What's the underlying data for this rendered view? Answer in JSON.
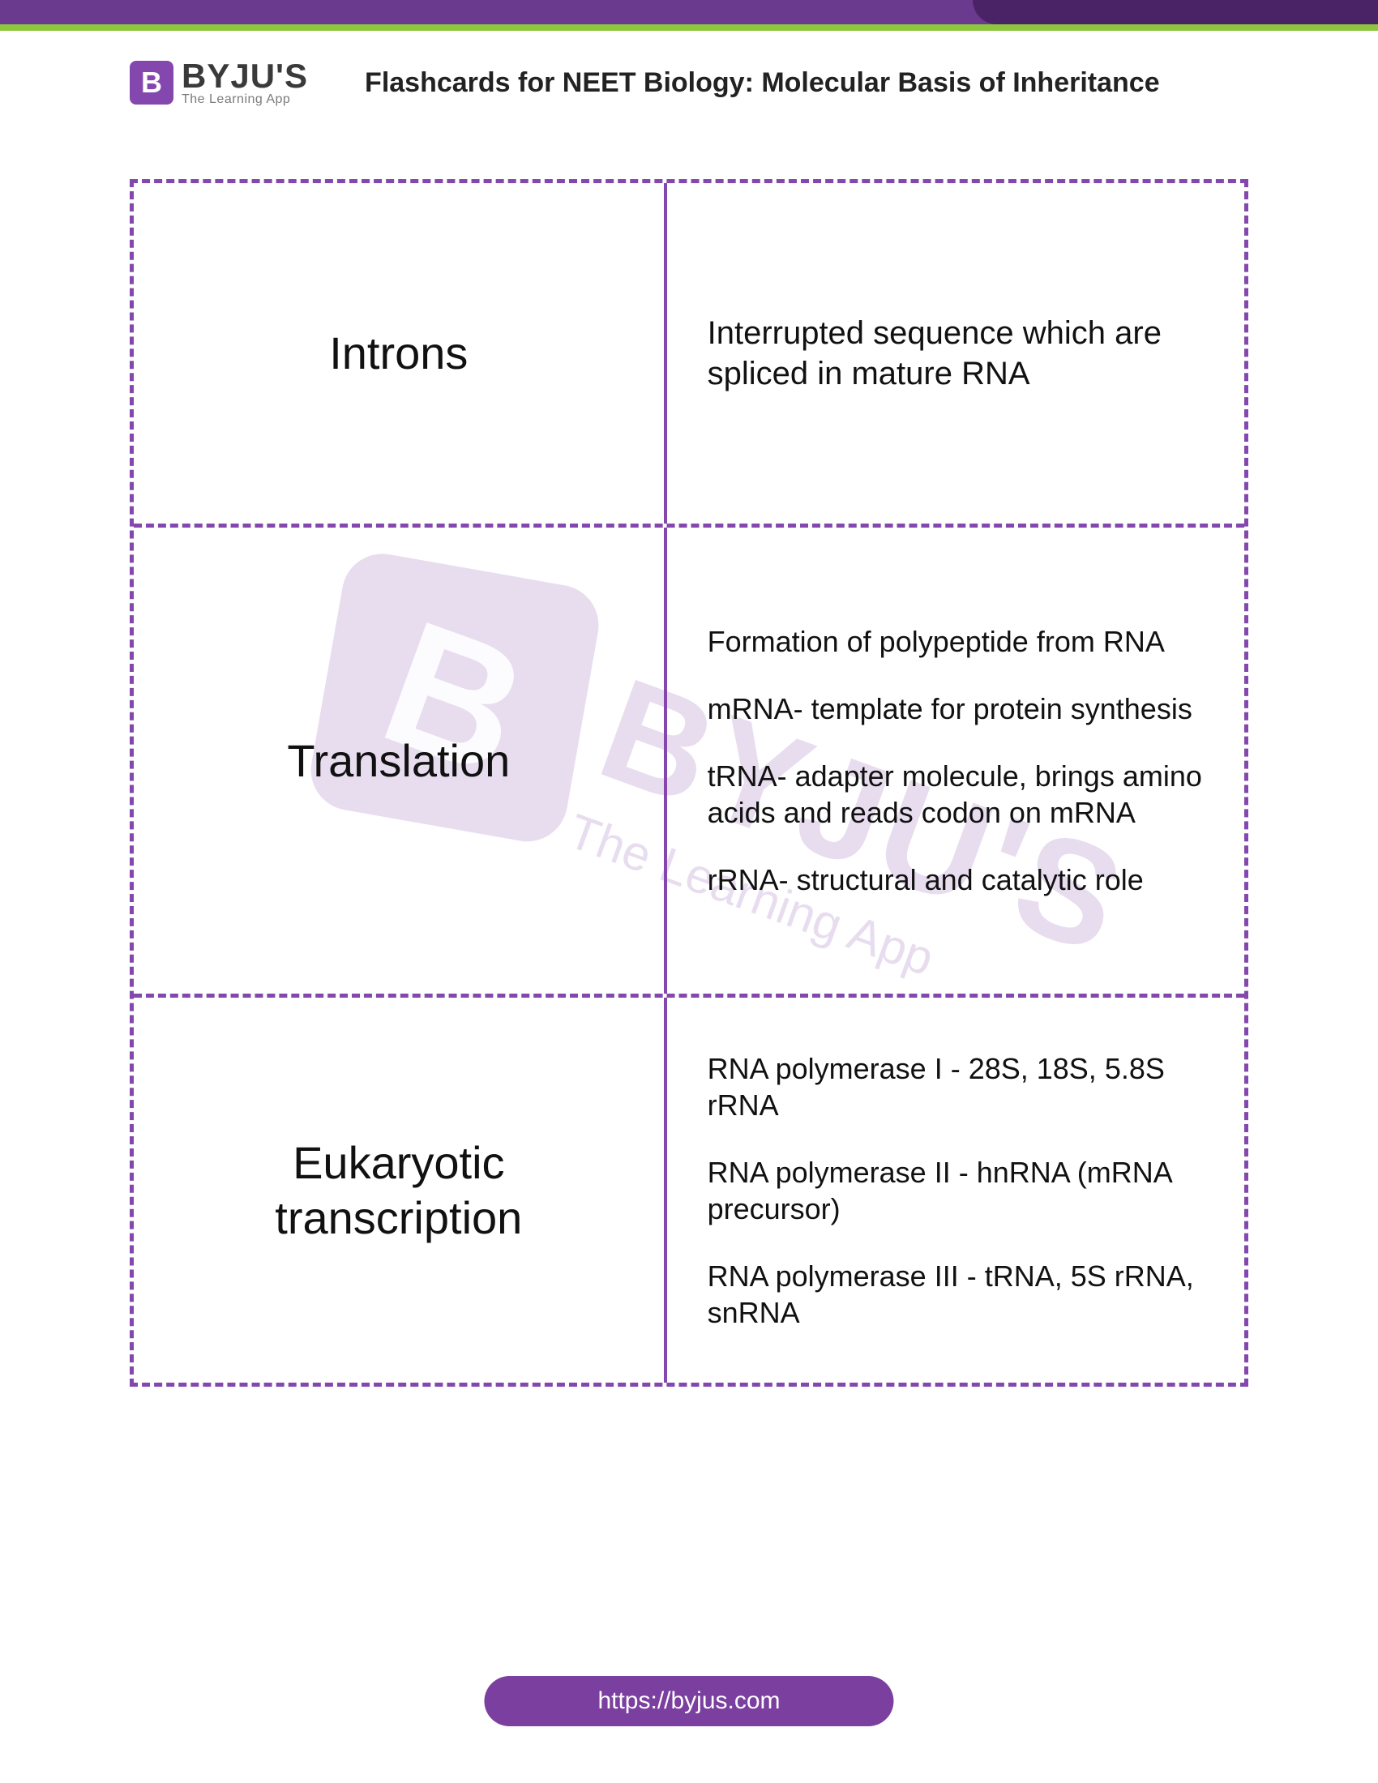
{
  "brand": {
    "logo_letter": "B",
    "name": "BYJU'S",
    "tagline": "The Learning App"
  },
  "doc_title": "Flashcards for NEET Biology: Molecular Basis of Inheritance",
  "watermark": {
    "letter": "B",
    "name": "BYJU'S",
    "tagline": "The Learning App"
  },
  "cards": {
    "introns": {
      "term": "Introns",
      "definition": "Interrupted sequence which are spliced in mature RNA"
    },
    "translation": {
      "term": "Translation",
      "lines": [
        "Formation of polypeptide from RNA",
        "mRNA- template for protein synthesis",
        "tRNA- adapter molecule, brings amino acids and reads codon on mRNA",
        "rRNA- structural and catalytic role"
      ]
    },
    "eukaryotic": {
      "term": "Eukaryotic transcription",
      "lines": [
        "RNA polymerase I - 28S, 18S, 5.8S rRNA",
        "RNA polymerase II - hnRNA (mRNA precursor)",
        "RNA polymerase III - tRNA, 5S rRNA, snRNA"
      ]
    }
  },
  "footer_url": "https://byjus.com",
  "colors": {
    "brand_purple": "#8347ad",
    "dark_purple": "#4a2266",
    "green": "#8dc63f",
    "text": "#111111"
  }
}
